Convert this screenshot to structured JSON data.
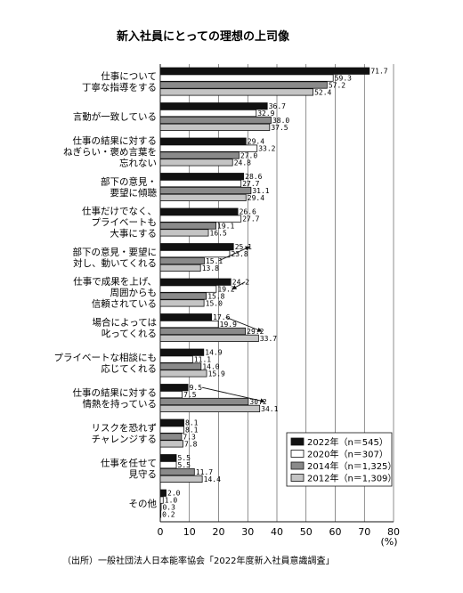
{
  "chart_data": {
    "type": "bar",
    "orientation": "horizontal",
    "title": "新入社員にとっての理想の上司像",
    "unit_label": "(%)",
    "xlim": [
      0,
      80
    ],
    "x_ticks": [
      "0",
      "10",
      "20",
      "30",
      "40",
      "50",
      "60",
      "70",
      "80"
    ],
    "grid": true,
    "legend_position": "bottom-right",
    "categories": [
      [
        "仕事について",
        "丁寧な指導をする"
      ],
      [
        "言動が一致している"
      ],
      [
        "仕事の結果に対する",
        "ねぎらい・褒め言葉を",
        "忘れない"
      ],
      [
        "部下の意見・",
        "要望に傾聴"
      ],
      [
        "仕事だけでなく、",
        "プライベートも",
        "大事にする"
      ],
      [
        "部下の意見・要望に",
        "対し、動いてくれる"
      ],
      [
        "仕事で成果を上げ、",
        "周囲からも",
        "信頼されている"
      ],
      [
        "場合によっては",
        "叱ってくれる"
      ],
      [
        "プライベートな相談にも",
        "応じてくれる"
      ],
      [
        "仕事の結果に対する",
        "情熱を持っている"
      ],
      [
        "リスクを恐れず",
        "チャレンジする"
      ],
      [
        "仕事を任せて",
        "見守る"
      ],
      [
        "その他"
      ]
    ],
    "series": [
      {
        "name": "2022年（n＝545）",
        "color": "#111111",
        "values": [
          71.7,
          36.7,
          29.4,
          28.6,
          26.6,
          25.1,
          24.2,
          17.6,
          14.9,
          9.5,
          8.1,
          5.5,
          2.0
        ]
      },
      {
        "name": "2020年（n＝307）",
        "color": "#ffffff",
        "values": [
          59.3,
          32.9,
          33.2,
          27.7,
          27.7,
          23.8,
          19.2,
          19.9,
          11.1,
          7.5,
          8.1,
          5.5,
          1.0
        ]
      },
      {
        "name": "2014年（n＝1,325）",
        "color": "#8a8a8a",
        "values": [
          57.2,
          38.0,
          27.0,
          31.1,
          19.1,
          15.1,
          15.8,
          29.2,
          14.0,
          30.2,
          7.3,
          11.7,
          0.3
        ]
      },
      {
        "name": "2012年（n＝1,309）",
        "color": "#c4c4c4",
        "values": [
          52.4,
          37.5,
          24.8,
          29.4,
          16.5,
          13.8,
          15.0,
          33.7,
          15.9,
          34.1,
          7.8,
          14.4,
          0.2
        ]
      }
    ],
    "value_labels": [
      [
        "71.7",
        "36.7",
        "29.4",
        "28.6",
        "26.6",
        "25.1",
        "24.2",
        "17.6",
        "14.9",
        "9.5",
        "8.1",
        "5.5",
        "2.0"
      ],
      [
        "59.3",
        "32.9",
        "33.2",
        "27.7",
        "27.7",
        "23.8",
        "19.2",
        "19.9",
        "11.1",
        "7.5",
        "8.1",
        "5.5",
        "1.0"
      ],
      [
        "57.2",
        "38.0",
        "27.0",
        "31.1",
        "19.1",
        "15.1",
        "15.8",
        "29.2",
        "14.0",
        "30.2",
        "7.3",
        "11.7",
        "0.3"
      ],
      [
        "52.4",
        "37.5",
        "24.8",
        "29.4",
        "16.5",
        "13.8",
        "15.0",
        "33.7",
        "15.9",
        "34.1",
        "7.8",
        "14.4",
        "0.2"
      ]
    ],
    "source": "（出所）一般社団法人日本能率協会「2022年度新入社員意識調査」"
  }
}
